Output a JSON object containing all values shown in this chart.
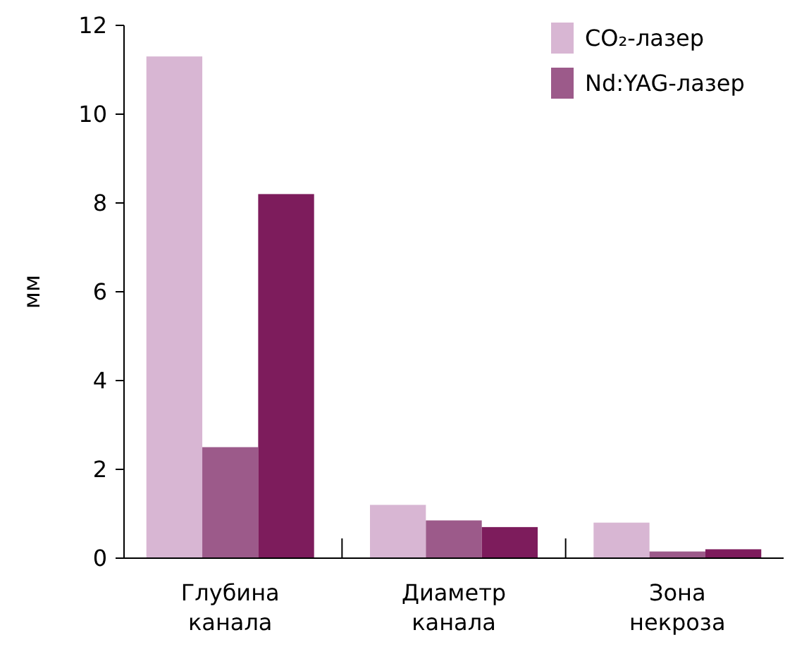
{
  "chart_data": {
    "type": "bar",
    "ylabel": "мм",
    "categories": [
      "Глубина канала",
      "Диаметр канала",
      "Зона некроза"
    ],
    "series": [
      {
        "name": "CO₂-лазер",
        "color": "#d8b6d3",
        "values": [
          11.3,
          1.2,
          0.8
        ]
      },
      {
        "name": "Nd:YAG-лазер",
        "color": "#9c5a8a",
        "values": [
          2.5,
          0.85,
          0.15
        ]
      },
      {
        "color": "#7d1c5c",
        "values": [
          8.2,
          0.7,
          0.2
        ]
      }
    ],
    "ylim": [
      0,
      12
    ],
    "yticks": [
      0,
      2,
      4,
      6,
      8,
      10,
      12
    ],
    "grid": false,
    "legend": "top right"
  }
}
